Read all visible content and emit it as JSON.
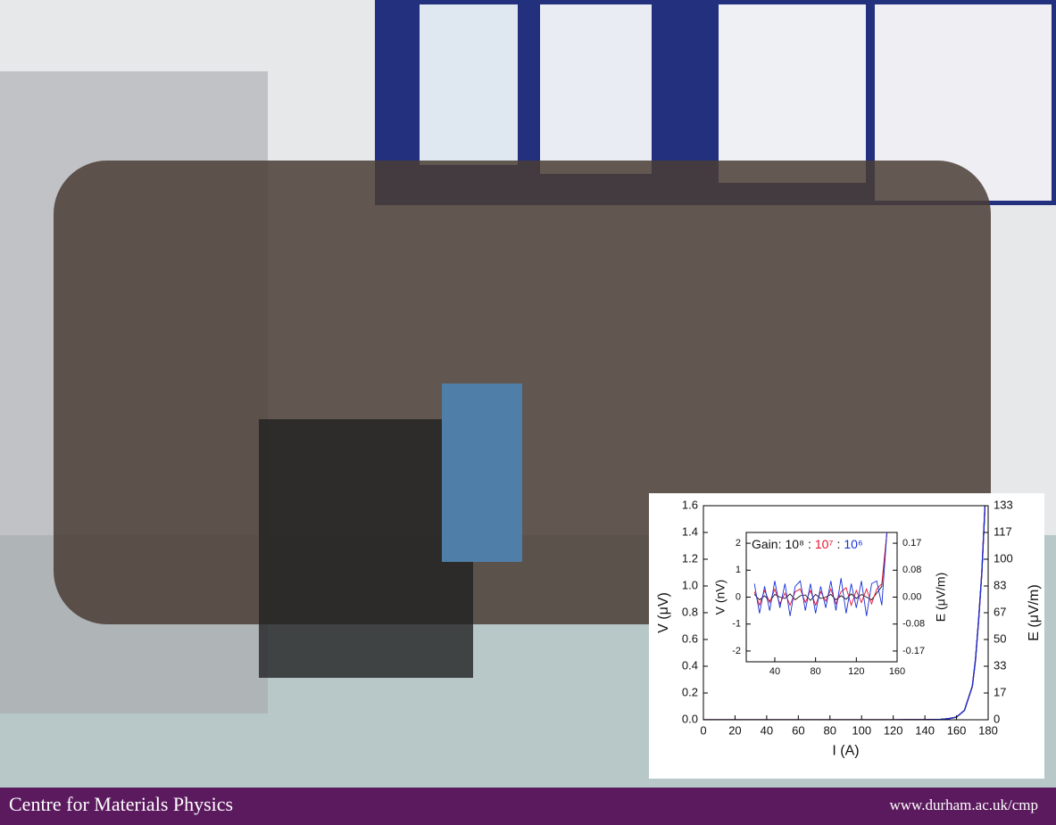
{
  "footer": {
    "title": "Centre for Materials Physics",
    "url": "www.durham.ac.uk/cmp"
  },
  "chart_data": [
    {
      "type": "line",
      "xlabel": "I (A)",
      "ylabel": "V (μV)",
      "y2label": "E (μV/m)",
      "x": [
        0,
        20,
        40,
        60,
        80,
        100,
        120,
        140,
        150,
        155,
        160,
        165,
        170,
        172,
        174,
        176,
        178
      ],
      "series": [
        {
          "color": "#111111",
          "values": [
            0,
            0,
            0,
            0,
            0,
            0,
            0,
            0.001,
            0.003,
            0.008,
            0.02,
            0.07,
            0.25,
            0.45,
            0.75,
            1.1,
            1.6
          ]
        },
        {
          "color": "#e8112d",
          "values": [
            0,
            0,
            0,
            0,
            0,
            0,
            0,
            0.001,
            0.003,
            0.008,
            0.02,
            0.07,
            0.25,
            0.45,
            0.75,
            1.1,
            1.6
          ]
        },
        {
          "color": "#1530d8",
          "values": [
            0,
            0,
            0,
            0,
            0,
            0,
            0,
            0.001,
            0.003,
            0.008,
            0.02,
            0.07,
            0.25,
            0.45,
            0.75,
            1.1,
            1.6
          ]
        }
      ],
      "xlim": [
        0,
        180
      ],
      "xticks": [
        0,
        20,
        40,
        60,
        80,
        100,
        120,
        140,
        160,
        180
      ],
      "ylim": [
        0,
        1.6
      ],
      "yticks": [
        {
          "value": 0,
          "label": "0.0"
        },
        0.2,
        0.4,
        0.6,
        0.8,
        {
          "value": 1,
          "label": "1.0"
        },
        1.2,
        1.4,
        1.6
      ],
      "y2lim": [
        0,
        133.33
      ],
      "y2ticks": [
        0,
        {
          "value": 16.67,
          "label": "17"
        },
        {
          "value": 33.33,
          "label": "33"
        },
        50,
        {
          "value": 66.67,
          "label": "67"
        },
        {
          "value": 83.33,
          "label": "83"
        },
        100,
        {
          "value": 116.67,
          "label": "117"
        },
        {
          "value": 133.33,
          "label": "133"
        }
      ]
    },
    {
      "type": "line",
      "ylabel": "V (nV)",
      "y2label": "E (μV/m)",
      "legend_title": "Gain:",
      "legend_separator": ":",
      "x": [
        20,
        25,
        30,
        35,
        40,
        45,
        50,
        55,
        60,
        65,
        70,
        75,
        80,
        85,
        90,
        95,
        100,
        105,
        110,
        115,
        120,
        125,
        130,
        135,
        140,
        145,
        150
      ],
      "series": [
        {
          "name": "10⁸",
          "color": "#111111",
          "values": [
            0.1,
            -0.1,
            0.05,
            -0.15,
            0.1,
            0,
            -0.05,
            0.12,
            -0.1,
            0.05,
            0.08,
            -0.12,
            0.1,
            -0.05,
            0,
            0.1,
            -0.1,
            0.05,
            -0.08,
            0.12,
            -0.05,
            0.1,
            0,
            -0.1,
            0.15,
            0.4,
            2.4
          ]
        },
        {
          "name": "10⁷",
          "color": "#e8112d",
          "values": [
            0.2,
            -0.3,
            0.25,
            -0.2,
            0.3,
            -0.25,
            0.15,
            -0.3,
            0.2,
            0.3,
            -0.2,
            0.25,
            -0.3,
            0.2,
            -0.15,
            0.3,
            -0.25,
            0.2,
            0.35,
            -0.3,
            0.25,
            -0.2,
            0.3,
            -0.25,
            0.3,
            0.5,
            2.4
          ]
        },
        {
          "name": "10⁶",
          "color": "#1530d8",
          "values": [
            0.5,
            -0.6,
            0.4,
            -0.5,
            0.6,
            -0.4,
            0.5,
            -0.7,
            0.4,
            0.6,
            -0.5,
            0.5,
            -0.6,
            0.4,
            -0.4,
            0.6,
            -0.5,
            0.7,
            -0.6,
            0.5,
            -0.4,
            0.6,
            -0.7,
            0.5,
            0.6,
            -0.3,
            2.4
          ]
        }
      ],
      "xlim": [
        12,
        160
      ],
      "xticks": [
        40,
        80,
        120,
        160
      ],
      "ylim": [
        -2.4,
        2.4
      ],
      "yticks": [
        -2,
        -1,
        0,
        1,
        2
      ],
      "y2lim": [
        -0.2,
        0.2
      ],
      "y2ticks": [
        {
          "value": -0.1667,
          "label": "-0.17"
        },
        {
          "value": -0.0833,
          "label": "-0.08"
        },
        {
          "value": 0,
          "label": "0.00"
        },
        {
          "value": 0.0833,
          "label": "0.08"
        },
        {
          "value": 0.1667,
          "label": "0.17"
        }
      ]
    }
  ]
}
